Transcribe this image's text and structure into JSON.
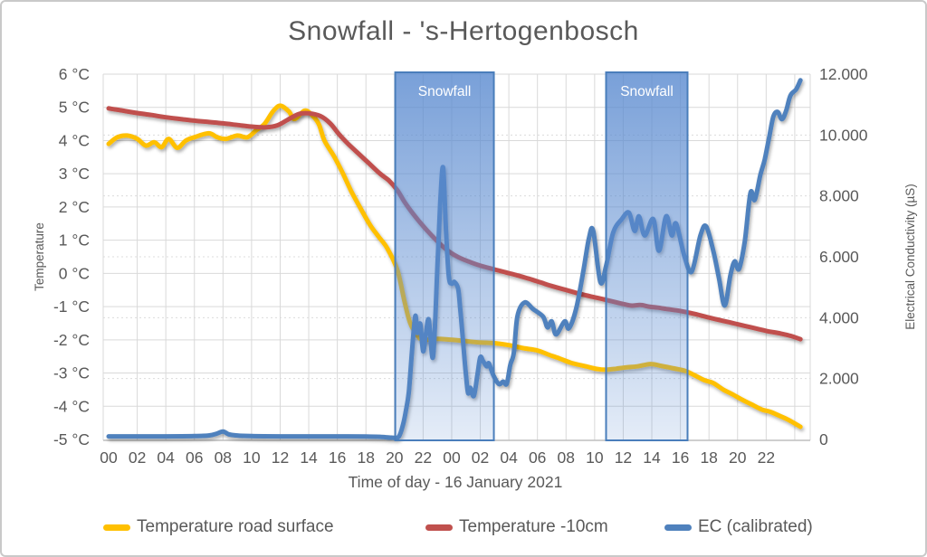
{
  "figure": {
    "title": "Snowfall - 's-Hertogenbosch"
  },
  "legend": {
    "items": [
      {
        "label": "Temperature road surface",
        "color": "#FFC000"
      },
      {
        "label": "Temperature -10cm",
        "color": "#C0504D"
      },
      {
        "label": "EC (calibrated)",
        "color": "#4F81BD"
      }
    ]
  },
  "colors": {
    "text": "#595959",
    "grid_solid": "#D9D9D9",
    "grid_dotted": "#DCDCDC",
    "axis_line": "#BFBFBF",
    "band_border": "#4A7EBB",
    "band_fill_base": "91,139,208"
  },
  "chart_data": {
    "type": "line",
    "title": "Snowfall - 's-Hertogenbosch",
    "x_axis": {
      "label": "Time of day - 16 January 2021",
      "tick_hours": [
        0,
        2,
        4,
        6,
        8,
        10,
        12,
        14,
        16,
        18,
        20,
        22,
        24,
        26,
        28,
        30,
        32,
        34,
        36,
        38,
        40,
        42,
        44,
        46
      ],
      "tick_labels": [
        "00",
        "02",
        "04",
        "06",
        "08",
        "10",
        "12",
        "14",
        "16",
        "18",
        "20",
        "22",
        "00",
        "02",
        "04",
        "06",
        "08",
        "10",
        "12",
        "14",
        "16",
        "18",
        "20",
        "22"
      ],
      "range_hours": [
        0,
        48.5
      ],
      "grid": true
    },
    "y_axis_left": {
      "label": "Temperature",
      "tick_values": [
        6,
        5,
        4,
        3,
        2,
        1,
        0,
        -1,
        -2,
        -3,
        -4,
        -5
      ],
      "tick_labels": [
        "6 °C",
        "5 °C",
        "4 °C",
        "3 °C",
        "2 °C",
        "1 °C",
        "0 °C",
        "-1 °C",
        "-2 °C",
        "-3 °C",
        "-4 °C",
        "-5 °C"
      ],
      "range": [
        -5,
        6
      ],
      "grid": "solid"
    },
    "y_axis_right": {
      "label": "Electrical Conductivity (µS)",
      "tick_values": [
        12000,
        10000,
        8000,
        6000,
        4000,
        2000,
        0
      ],
      "tick_labels": [
        "12.000",
        "10.000",
        "8.000",
        "6.000",
        "4.000",
        "2.000",
        "0"
      ],
      "range": [
        0,
        12000
      ],
      "grid": "dotted"
    },
    "annotations": {
      "snowfall_bands": [
        {
          "label": "Snowfall",
          "start_hour": 20.05,
          "end_hour": 26.95
        },
        {
          "label": "Snowfall",
          "start_hour": 34.8,
          "end_hour": 40.5
        }
      ]
    },
    "series": [
      {
        "name": "Temperature road surface",
        "color": "#FFC000",
        "axis": "left",
        "unit": "°C",
        "points": [
          [
            0,
            3.9
          ],
          [
            0.6,
            4.1
          ],
          [
            1.3,
            4.15
          ],
          [
            2,
            4.05
          ],
          [
            2.6,
            3.85
          ],
          [
            3.2,
            3.95
          ],
          [
            3.7,
            3.8
          ],
          [
            4.2,
            4.05
          ],
          [
            4.8,
            3.78
          ],
          [
            5.4,
            4.0
          ],
          [
            6,
            4.1
          ],
          [
            7,
            4.22
          ],
          [
            7.6,
            4.1
          ],
          [
            8.2,
            4.05
          ],
          [
            9,
            4.15
          ],
          [
            9.7,
            4.1
          ],
          [
            10.3,
            4.3
          ],
          [
            10.9,
            4.5
          ],
          [
            11.5,
            4.88
          ],
          [
            12,
            5.05
          ],
          [
            12.6,
            4.88
          ],
          [
            13,
            4.65
          ],
          [
            13.7,
            4.9
          ],
          [
            14.2,
            4.78
          ],
          [
            14.7,
            4.5
          ],
          [
            15.1,
            4.0
          ],
          [
            15.8,
            3.5
          ],
          [
            16.4,
            3.0
          ],
          [
            17,
            2.45
          ],
          [
            17.7,
            1.9
          ],
          [
            18.3,
            1.45
          ],
          [
            18.9,
            1.1
          ],
          [
            19.5,
            0.75
          ],
          [
            20.2,
            0.1
          ],
          [
            20.7,
            -0.85
          ],
          [
            21.1,
            -1.5
          ],
          [
            21.6,
            -1.87
          ],
          [
            22,
            -2.0
          ],
          [
            23,
            -1.97
          ],
          [
            24,
            -2.0
          ],
          [
            25,
            -2.04
          ],
          [
            26,
            -2.08
          ],
          [
            27,
            -2.1
          ],
          [
            28,
            -2.16
          ],
          [
            29,
            -2.25
          ],
          [
            30,
            -2.32
          ],
          [
            30.8,
            -2.45
          ],
          [
            31.6,
            -2.57
          ],
          [
            32.4,
            -2.7
          ],
          [
            33.4,
            -2.8
          ],
          [
            34.2,
            -2.88
          ],
          [
            34.8,
            -2.9
          ],
          [
            35.5,
            -2.87
          ],
          [
            36.2,
            -2.83
          ],
          [
            37,
            -2.8
          ],
          [
            37.9,
            -2.73
          ],
          [
            38.6,
            -2.78
          ],
          [
            39.4,
            -2.85
          ],
          [
            40.3,
            -2.93
          ],
          [
            41,
            -3.07
          ],
          [
            41.7,
            -3.22
          ],
          [
            42.3,
            -3.3
          ],
          [
            43,
            -3.5
          ],
          [
            43.6,
            -3.63
          ],
          [
            44.3,
            -3.8
          ],
          [
            45,
            -3.95
          ],
          [
            45.7,
            -4.1
          ],
          [
            46.3,
            -4.17
          ],
          [
            47,
            -4.3
          ],
          [
            47.6,
            -4.42
          ],
          [
            48.4,
            -4.62
          ]
        ]
      },
      {
        "name": "Temperature -10cm",
        "color": "#C0504D",
        "axis": "left",
        "unit": "°C",
        "points": [
          [
            0,
            4.97
          ],
          [
            1,
            4.9
          ],
          [
            2,
            4.83
          ],
          [
            3,
            4.77
          ],
          [
            4,
            4.7
          ],
          [
            5,
            4.65
          ],
          [
            6,
            4.6
          ],
          [
            7,
            4.56
          ],
          [
            8,
            4.52
          ],
          [
            9,
            4.47
          ],
          [
            10,
            4.42
          ],
          [
            11,
            4.4
          ],
          [
            11.8,
            4.46
          ],
          [
            12.5,
            4.62
          ],
          [
            13.3,
            4.8
          ],
          [
            14,
            4.82
          ],
          [
            14.8,
            4.74
          ],
          [
            15.5,
            4.52
          ],
          [
            16.1,
            4.2
          ],
          [
            16.8,
            3.88
          ],
          [
            17.5,
            3.6
          ],
          [
            18.2,
            3.32
          ],
          [
            19,
            3.0
          ],
          [
            19.6,
            2.8
          ],
          [
            20.2,
            2.5
          ],
          [
            20.7,
            2.15
          ],
          [
            21.2,
            1.85
          ],
          [
            21.7,
            1.58
          ],
          [
            22.2,
            1.33
          ],
          [
            22.7,
            1.1
          ],
          [
            23.2,
            0.88
          ],
          [
            23.8,
            0.66
          ],
          [
            24.5,
            0.48
          ],
          [
            25.3,
            0.34
          ],
          [
            26.1,
            0.22
          ],
          [
            27,
            0.12
          ],
          [
            27.8,
            0.03
          ],
          [
            28.6,
            -0.06
          ],
          [
            29.4,
            -0.16
          ],
          [
            30.2,
            -0.27
          ],
          [
            31,
            -0.38
          ],
          [
            32,
            -0.5
          ],
          [
            33,
            -0.62
          ],
          [
            34,
            -0.72
          ],
          [
            34.8,
            -0.8
          ],
          [
            35.4,
            -0.86
          ],
          [
            36,
            -0.92
          ],
          [
            36.6,
            -0.97
          ],
          [
            37.2,
            -0.95
          ],
          [
            37.8,
            -1.0
          ],
          [
            38.4,
            -1.03
          ],
          [
            39,
            -1.07
          ],
          [
            40,
            -1.13
          ],
          [
            41,
            -1.22
          ],
          [
            42,
            -1.33
          ],
          [
            43,
            -1.43
          ],
          [
            44,
            -1.53
          ],
          [
            45,
            -1.63
          ],
          [
            46,
            -1.73
          ],
          [
            47,
            -1.81
          ],
          [
            47.7,
            -1.88
          ],
          [
            48.4,
            -1.98
          ]
        ]
      },
      {
        "name": "EC (calibrated)",
        "color": "#4F81BD",
        "axis": "right",
        "unit": "µS",
        "points": [
          [
            0,
            100
          ],
          [
            2,
            100
          ],
          [
            4,
            100
          ],
          [
            6,
            110
          ],
          [
            7,
            130
          ],
          [
            7.5,
            180
          ],
          [
            8,
            260
          ],
          [
            8.4,
            170
          ],
          [
            9,
            130
          ],
          [
            10,
            110
          ],
          [
            12,
            100
          ],
          [
            14,
            100
          ],
          [
            16,
            100
          ],
          [
            18,
            95
          ],
          [
            19,
            85
          ],
          [
            19.8,
            60
          ],
          [
            20.3,
            90
          ],
          [
            20.6,
            500
          ],
          [
            20.8,
            950
          ],
          [
            21,
            1550
          ],
          [
            21.2,
            2750
          ],
          [
            21.45,
            4050
          ],
          [
            21.6,
            3500
          ],
          [
            21.8,
            3800
          ],
          [
            22,
            2900
          ],
          [
            22.2,
            3480
          ],
          [
            22.4,
            3930
          ],
          [
            22.7,
            2720
          ],
          [
            23,
            5700
          ],
          [
            23.2,
            7800
          ],
          [
            23.4,
            8930
          ],
          [
            23.6,
            6900
          ],
          [
            23.8,
            5350
          ],
          [
            24,
            5120
          ],
          [
            24.2,
            5170
          ],
          [
            24.45,
            4950
          ],
          [
            24.6,
            4280
          ],
          [
            24.8,
            3200
          ],
          [
            25,
            2100
          ],
          [
            25.15,
            1520
          ],
          [
            25.3,
            1700
          ],
          [
            25.55,
            1430
          ],
          [
            25.8,
            2130
          ],
          [
            26,
            2700
          ],
          [
            26.2,
            2570
          ],
          [
            26.45,
            2400
          ],
          [
            26.6,
            2500
          ],
          [
            26.9,
            2120
          ],
          [
            27.3,
            1820
          ],
          [
            27.6,
            1900
          ],
          [
            27.85,
            1830
          ],
          [
            28.1,
            2450
          ],
          [
            28.35,
            2850
          ],
          [
            28.6,
            4050
          ],
          [
            29.1,
            4500
          ],
          [
            29.7,
            4280
          ],
          [
            30.4,
            4030
          ],
          [
            30.7,
            3680
          ],
          [
            31,
            3880
          ],
          [
            31.3,
            3450
          ],
          [
            31.9,
            3880
          ],
          [
            32.2,
            3650
          ],
          [
            32.7,
            4280
          ],
          [
            33.2,
            5500
          ],
          [
            33.6,
            6600
          ],
          [
            33.9,
            6850
          ],
          [
            34.4,
            5170
          ],
          [
            34.8,
            5700
          ],
          [
            35.3,
            6800
          ],
          [
            35.9,
            7240
          ],
          [
            36.4,
            7450
          ],
          [
            36.8,
            6850
          ],
          [
            37.1,
            7330
          ],
          [
            37.5,
            6700
          ],
          [
            38.1,
            7240
          ],
          [
            38.5,
            6200
          ],
          [
            39,
            7330
          ],
          [
            39.4,
            6700
          ],
          [
            39.7,
            7090
          ],
          [
            40.3,
            5990
          ],
          [
            40.8,
            5520
          ],
          [
            41.4,
            6700
          ],
          [
            41.8,
            7000
          ],
          [
            42.3,
            6200
          ],
          [
            42.7,
            5300
          ],
          [
            43.1,
            4400
          ],
          [
            43.5,
            5400
          ],
          [
            43.8,
            5850
          ],
          [
            44.1,
            5600
          ],
          [
            44.5,
            6500
          ],
          [
            44.9,
            8100
          ],
          [
            45.2,
            7870
          ],
          [
            45.6,
            8700
          ],
          [
            45.9,
            9200
          ],
          [
            46.2,
            9900
          ],
          [
            46.5,
            10600
          ],
          [
            46.8,
            10760
          ],
          [
            47.1,
            10520
          ],
          [
            47.4,
            10800
          ],
          [
            47.7,
            11300
          ],
          [
            48.1,
            11500
          ],
          [
            48.4,
            11800
          ]
        ]
      }
    ]
  }
}
